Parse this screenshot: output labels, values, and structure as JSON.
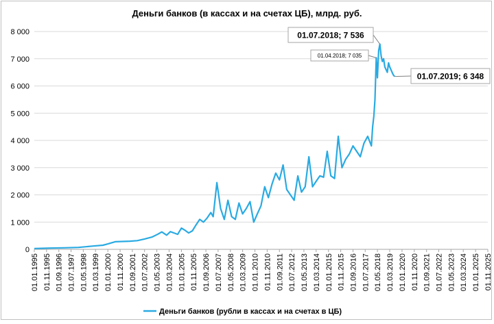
{
  "chart_data": {
    "type": "line",
    "title": "Деньги банков (в кассах и на счетах ЦБ), млрд. руб.",
    "xlabel": "",
    "ylabel": "",
    "ylim": [
      0,
      8000
    ],
    "y_ticks": [
      "0",
      "1 000",
      "2 000",
      "3 000",
      "4 000",
      "5 000",
      "6 000",
      "7 000",
      "8 000"
    ],
    "y_tick_values": [
      0,
      1000,
      2000,
      3000,
      4000,
      5000,
      6000,
      7000,
      8000
    ],
    "x_range": [
      "1995-01-01",
      "2025-11-01"
    ],
    "x_ticks": [
      "01.01.1995",
      "01.11.1995",
      "01.09.1996",
      "01.07.1997",
      "01.05.1998",
      "01.03.1999",
      "01.01.2000",
      "01.11.2000",
      "01.09.2001",
      "01.07.2002",
      "01.05.2003",
      "01.03.2004",
      "01.01.2005",
      "01.11.2005",
      "01.09.2006",
      "01.07.2007",
      "01.05.2008",
      "01.03.2009",
      "01.01.2010",
      "01.11.2010",
      "01.09.2011",
      "01.07.2012",
      "01.05.2013",
      "01.03.2014",
      "01.01.2015",
      "01.11.2015",
      "01.09.2016",
      "01.07.2017",
      "01.05.2018",
      "01.03.2019",
      "01.01.2020",
      "01.11.2020",
      "01.09.2021",
      "01.07.2022",
      "01.05.2023",
      "01.03.2024",
      "01.01.2025",
      "01.11.2025"
    ],
    "grid": true,
    "legend_position": "bottom",
    "colors": {
      "series": "#29aae2",
      "grid": "#d9d9d9",
      "text": "#000000"
    },
    "annotations": [
      {
        "label": "01.07.2018;  7 536",
        "x": "2018-07-01",
        "y": 7536
      },
      {
        "label": "01.04.2018;  7 035",
        "x": "2018-04-01",
        "y": 7035
      },
      {
        "label": "01.07.2019;  6 348",
        "x": "2019-07-01",
        "y": 6348
      }
    ],
    "series": [
      {
        "name": "Деньги банков (рубли в кассах и на счетах в ЦБ)",
        "points": [
          [
            "1995-01-01",
            30
          ],
          [
            "1996-01-01",
            45
          ],
          [
            "1997-01-01",
            55
          ],
          [
            "1998-01-01",
            70
          ],
          [
            "1999-01-01",
            120
          ],
          [
            "1999-09-01",
            150
          ],
          [
            "2000-01-01",
            200
          ],
          [
            "2000-07-01",
            280
          ],
          [
            "2001-01-01",
            290
          ],
          [
            "2001-07-01",
            300
          ],
          [
            "2002-01-01",
            320
          ],
          [
            "2002-07-01",
            380
          ],
          [
            "2003-01-01",
            450
          ],
          [
            "2003-06-01",
            560
          ],
          [
            "2003-09-01",
            640
          ],
          [
            "2004-01-01",
            520
          ],
          [
            "2004-04-01",
            650
          ],
          [
            "2004-07-01",
            600
          ],
          [
            "2004-10-01",
            550
          ],
          [
            "2005-01-01",
            780
          ],
          [
            "2005-04-01",
            700
          ],
          [
            "2005-07-01",
            600
          ],
          [
            "2005-10-01",
            680
          ],
          [
            "2006-01-01",
            900
          ],
          [
            "2006-04-01",
            1100
          ],
          [
            "2006-07-01",
            1000
          ],
          [
            "2006-10-01",
            1150
          ],
          [
            "2007-01-01",
            1350
          ],
          [
            "2007-03-01",
            1200
          ],
          [
            "2007-06-01",
            2450
          ],
          [
            "2007-09-01",
            1500
          ],
          [
            "2007-12-01",
            1100
          ],
          [
            "2008-03-01",
            1800
          ],
          [
            "2008-06-01",
            1200
          ],
          [
            "2008-09-01",
            1100
          ],
          [
            "2008-12-01",
            1700
          ],
          [
            "2009-03-01",
            1300
          ],
          [
            "2009-06-01",
            1500
          ],
          [
            "2009-09-01",
            1750
          ],
          [
            "2009-12-01",
            1000
          ],
          [
            "2010-03-01",
            1300
          ],
          [
            "2010-06-01",
            1600
          ],
          [
            "2010-09-01",
            2300
          ],
          [
            "2010-12-01",
            1900
          ],
          [
            "2011-03-01",
            2400
          ],
          [
            "2011-06-01",
            2800
          ],
          [
            "2011-09-01",
            2550
          ],
          [
            "2011-12-01",
            3100
          ],
          [
            "2012-03-01",
            2200
          ],
          [
            "2012-06-01",
            2000
          ],
          [
            "2012-09-01",
            1800
          ],
          [
            "2012-12-01",
            2700
          ],
          [
            "2013-03-01",
            2100
          ],
          [
            "2013-06-01",
            2300
          ],
          [
            "2013-09-01",
            3400
          ],
          [
            "2013-12-01",
            2300
          ],
          [
            "2014-03-01",
            2500
          ],
          [
            "2014-06-01",
            2700
          ],
          [
            "2014-09-01",
            2650
          ],
          [
            "2014-12-01",
            3600
          ],
          [
            "2015-03-01",
            2700
          ],
          [
            "2015-06-01",
            2600
          ],
          [
            "2015-09-01",
            4150
          ],
          [
            "2015-12-01",
            3000
          ],
          [
            "2016-03-01",
            3300
          ],
          [
            "2016-06-01",
            3500
          ],
          [
            "2016-09-01",
            3800
          ],
          [
            "2016-12-01",
            3600
          ],
          [
            "2017-03-01",
            3400
          ],
          [
            "2017-06-01",
            3900
          ],
          [
            "2017-09-01",
            4150
          ],
          [
            "2017-12-01",
            3800
          ],
          [
            "2018-01-01",
            4500
          ],
          [
            "2018-02-01",
            4900
          ],
          [
            "2018-03-01",
            5500
          ],
          [
            "2018-04-01",
            7035
          ],
          [
            "2018-05-01",
            6300
          ],
          [
            "2018-06-01",
            7300
          ],
          [
            "2018-07-01",
            7536
          ],
          [
            "2018-08-01",
            7100
          ],
          [
            "2018-09-01",
            6900
          ],
          [
            "2018-10-01",
            7000
          ],
          [
            "2018-11-01",
            6700
          ],
          [
            "2018-12-01",
            6600
          ],
          [
            "2019-01-01",
            6500
          ],
          [
            "2019-02-01",
            6850
          ],
          [
            "2019-03-01",
            6700
          ],
          [
            "2019-04-01",
            6600
          ],
          [
            "2019-05-01",
            6500
          ],
          [
            "2019-06-01",
            6400
          ],
          [
            "2019-07-01",
            6348
          ]
        ]
      }
    ]
  }
}
